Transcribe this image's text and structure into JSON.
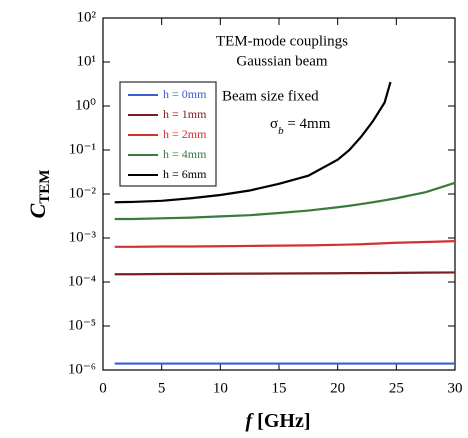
{
  "chart_data": {
    "type": "line",
    "annotations": [
      "TEM-mode couplings",
      "Gaussian beam",
      "Beam size fixed"
    ],
    "sigma_label": {
      "main": "σ",
      "sub": "b",
      "rest": " = 4mm"
    },
    "x_label": {
      "italic": "f",
      "rest": " [GHz]"
    },
    "y_label": {
      "main": "C",
      "sub": "TEM"
    },
    "x": [
      1,
      2.5,
      5,
      7.5,
      10,
      12.5,
      15,
      17.5,
      20,
      21,
      22,
      23,
      24,
      24.5,
      25,
      27.5,
      30
    ],
    "series": [
      {
        "name": "h = 0mm",
        "color": "#3a5fcd",
        "values": [
          1.4e-06,
          1.4e-06,
          1.4e-06,
          1.4e-06,
          1.4e-06,
          1.4e-06,
          1.4e-06,
          1.4e-06,
          1.4e-06,
          1.4e-06,
          1.4e-06,
          1.4e-06,
          1.4e-06,
          1.4e-06,
          1.4e-06,
          1.4e-06,
          1.4e-06
        ]
      },
      {
        "name": "h = 1mm",
        "color": "#7a1f1f",
        "values": [
          0.00015,
          0.00015,
          0.000152,
          0.000153,
          0.000154,
          0.000155,
          0.000156,
          0.000157,
          0.000158,
          0.000159,
          0.000159,
          0.00016,
          0.00016,
          0.00016,
          0.000161,
          0.000163,
          0.000165
        ]
      },
      {
        "name": "h = 2mm",
        "color": "#d43030",
        "values": [
          0.00063,
          0.00063,
          0.00064,
          0.00064,
          0.00065,
          0.00066,
          0.00067,
          0.00068,
          0.0007,
          0.00071,
          0.00072,
          0.00074,
          0.00076,
          0.00077,
          0.00078,
          0.00081,
          0.00085
        ]
      },
      {
        "name": "h = 4mm",
        "color": "#3a7a3a",
        "values": [
          0.0027,
          0.0027,
          0.0028,
          0.0029,
          0.0031,
          0.0033,
          0.0037,
          0.0042,
          0.005,
          0.0054,
          0.0059,
          0.0065,
          0.0072,
          0.0076,
          0.008,
          0.011,
          0.018
        ]
      },
      {
        "name": "h = 6mm",
        "color": "#000000",
        "values": [
          0.0065,
          0.0066,
          0.007,
          0.008,
          0.0095,
          0.012,
          0.017,
          0.026,
          0.06,
          0.1,
          0.2,
          0.45,
          1.2,
          3.5,
          null,
          null,
          null
        ]
      }
    ],
    "xlim": [
      0,
      30
    ],
    "xticks": [
      0,
      5,
      10,
      15,
      20,
      25,
      30
    ],
    "ylim": [
      1e-06,
      100
    ],
    "log_y": true,
    "yticks": [
      {
        "value": 1e-06,
        "label": "10⁻⁶"
      },
      {
        "value": 1e-05,
        "label": "10⁻⁵"
      },
      {
        "value": 0.0001,
        "label": "10⁻⁴"
      },
      {
        "value": 0.001,
        "label": "10⁻³"
      },
      {
        "value": 0.01,
        "label": "10⁻²"
      },
      {
        "value": 0.1,
        "label": "10⁻¹"
      },
      {
        "value": 1,
        "label": "10⁰"
      },
      {
        "value": 10,
        "label": "10¹"
      },
      {
        "value": 100,
        "label": "10²"
      }
    ]
  }
}
